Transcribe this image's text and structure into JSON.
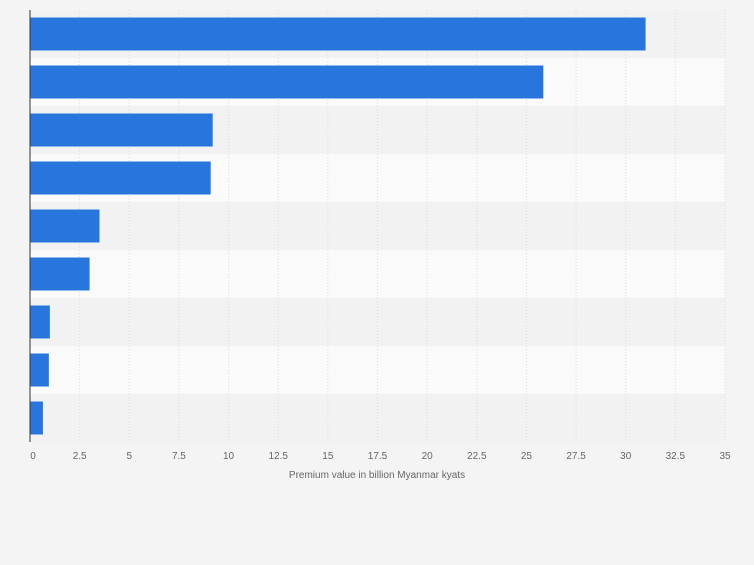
{
  "chart_data": {
    "type": "bar",
    "orientation": "horizontal",
    "categories": [
      "",
      "",
      "",
      "",
      "",
      "",
      "",
      "",
      ""
    ],
    "values": [
      31.0,
      25.85,
      9.2,
      9.1,
      3.5,
      3.0,
      1.0,
      0.95,
      0.65
    ],
    "title": "",
    "xlabel": "Premium value in billion Myanmar kyats",
    "ylabel": "",
    "xlim": [
      0,
      35
    ],
    "xticks": [
      0,
      2.5,
      5,
      7.5,
      10,
      12.5,
      15,
      17.5,
      20,
      22.5,
      25,
      27.5,
      30,
      32.5,
      35
    ],
    "xtick_labels": [
      "0",
      "2.5",
      "5",
      "7.5",
      "10",
      "12.5",
      "15",
      "17.5",
      "20",
      "22.5",
      "25",
      "27.5",
      "30",
      "32.5",
      "35"
    ],
    "grid": true,
    "bar_color": "#2876dd"
  }
}
